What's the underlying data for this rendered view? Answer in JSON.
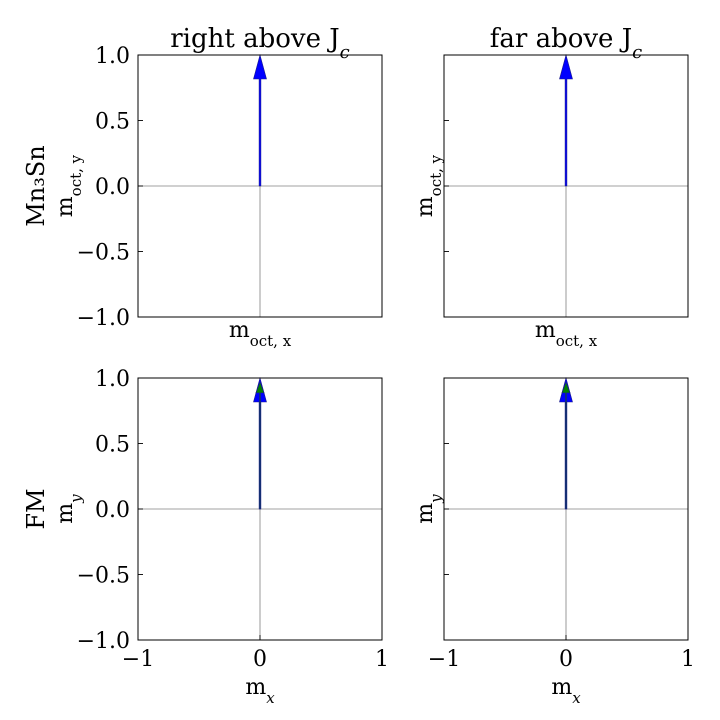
{
  "chart_data": [
    {
      "type": "quiver",
      "row_label": "Mn₃Sn",
      "title": "right above J",
      "title_sub": "c",
      "xlabel": "m",
      "xlabel_sub": "oct, x",
      "ylabel": "m",
      "ylabel_sub": "oct, y",
      "xlim": [
        -1,
        1
      ],
      "ylim": [
        -1,
        1
      ],
      "xticks": [],
      "yticks": [
        "-1.0",
        "-0.5",
        "0.0",
        "0.5",
        "1.0"
      ],
      "show_x_ticklabels": false,
      "show_y_ticklabels": true,
      "zero_lines": true,
      "arrows": [
        {
          "x": 0,
          "y": 0,
          "u": 0,
          "v": 1,
          "color": "#0000ff"
        }
      ]
    },
    {
      "type": "quiver",
      "row_label": "",
      "title": "far above J",
      "title_sub": "c",
      "xlabel": "m",
      "xlabel_sub": "oct, x",
      "ylabel": "m",
      "ylabel_sub": "oct, y",
      "xlim": [
        -1,
        1
      ],
      "ylim": [
        -1,
        1
      ],
      "xticks": [],
      "yticks": [
        "-1.0",
        "-0.5",
        "0.0",
        "0.5",
        "1.0"
      ],
      "show_x_ticklabels": false,
      "show_y_ticklabels": false,
      "zero_lines": true,
      "arrows": [
        {
          "x": 0,
          "y": 0,
          "u": 0,
          "v": 1,
          "color": "#0000ff"
        }
      ]
    },
    {
      "type": "quiver",
      "row_label": "FM",
      "title": "",
      "title_sub": "",
      "xlabel": "m",
      "xlabel_sub": "x",
      "ylabel": "m",
      "ylabel_sub": "y",
      "xlim": [
        -1,
        1
      ],
      "ylim": [
        -1,
        1
      ],
      "xticks": [
        "−1",
        "0",
        "1"
      ],
      "yticks": [
        "-1.0",
        "-0.5",
        "0.0",
        "0.5",
        "1.0"
      ],
      "show_x_ticklabels": true,
      "show_y_ticklabels": true,
      "zero_lines": true,
      "arrows": [
        {
          "x": 0,
          "y": 0,
          "u": 0,
          "v": 1,
          "color": "#0000ff"
        },
        {
          "x": 0,
          "y": 0,
          "u": 0,
          "v": 1,
          "color": "#008000"
        }
      ]
    },
    {
      "type": "quiver",
      "row_label": "",
      "title": "",
      "title_sub": "",
      "xlabel": "m",
      "xlabel_sub": "x",
      "ylabel": "m",
      "ylabel_sub": "y",
      "xlim": [
        -1,
        1
      ],
      "ylim": [
        -1,
        1
      ],
      "xticks": [
        "−1",
        "0",
        "1"
      ],
      "yticks": [
        "-1.0",
        "-0.5",
        "0.0",
        "0.5",
        "1.0"
      ],
      "show_x_ticklabels": true,
      "show_y_ticklabels": false,
      "zero_lines": true,
      "arrows": [
        {
          "x": 0,
          "y": 0,
          "u": 0,
          "v": 1,
          "color": "#0000ff"
        },
        {
          "x": 0,
          "y": 0,
          "u": 0,
          "v": 1,
          "color": "#008000"
        }
      ]
    }
  ]
}
